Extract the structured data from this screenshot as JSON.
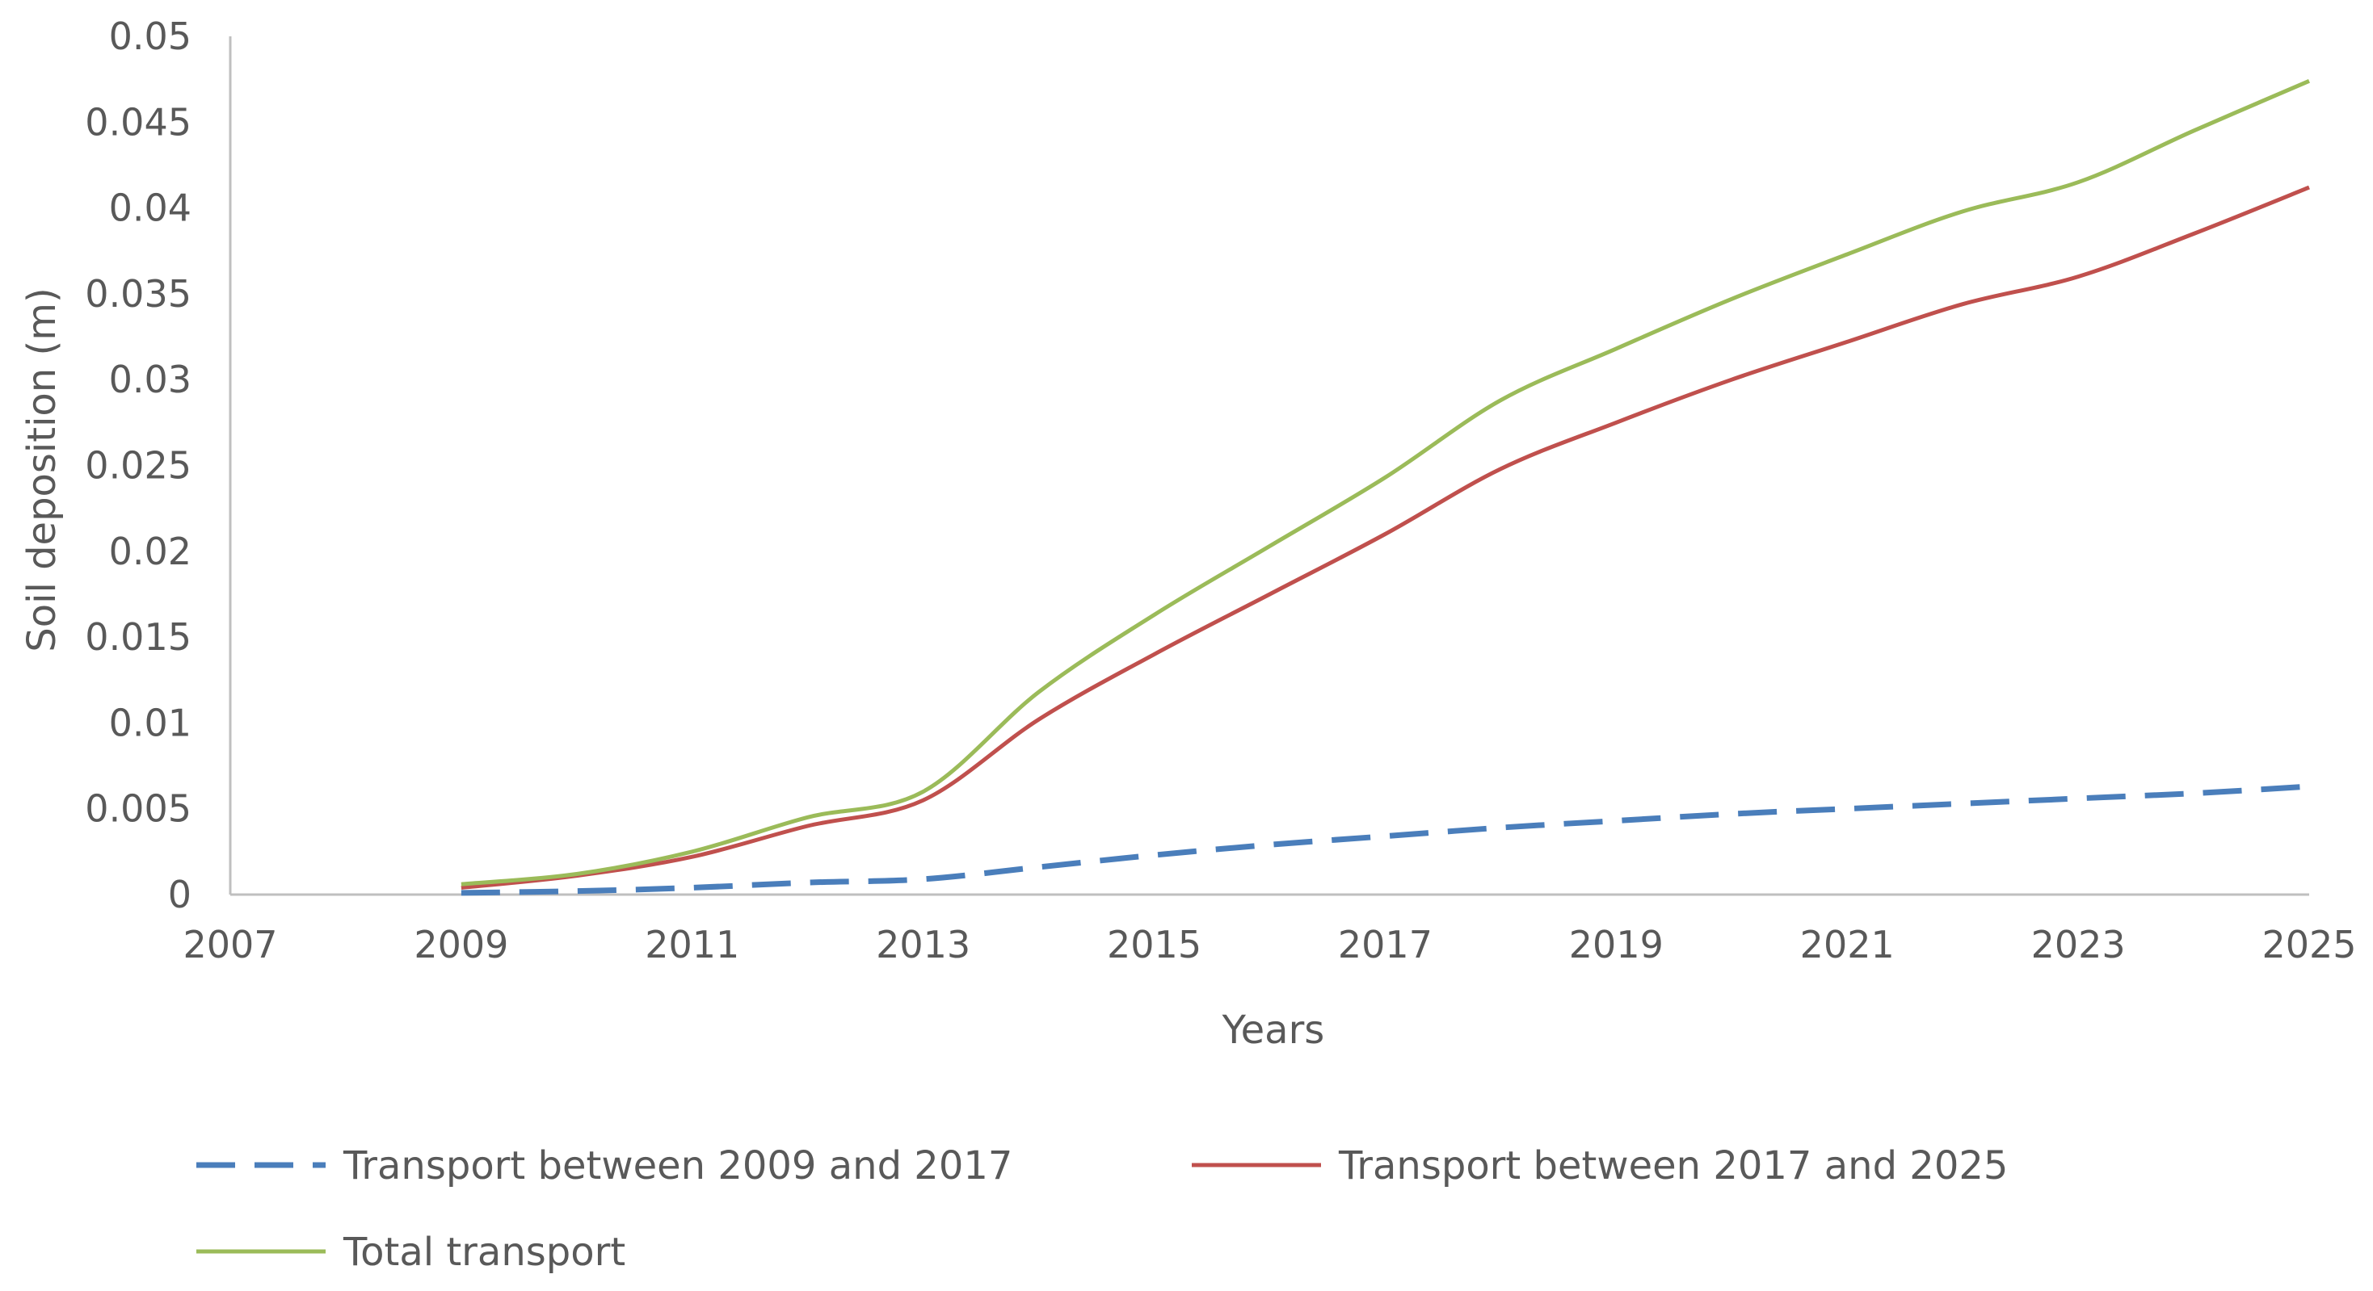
{
  "chart_data": {
    "type": "line",
    "title": "",
    "xlabel": "Years",
    "ylabel": "Soil deposition (m)",
    "xlim": [
      2007,
      2025
    ],
    "ylim": [
      0,
      0.05
    ],
    "x_ticks": [
      "2007",
      "2009",
      "2011",
      "2013",
      "2015",
      "2017",
      "2019",
      "2021",
      "2023",
      "2025"
    ],
    "y_ticks": [
      "0",
      "0.005",
      "0.01",
      "0.015",
      "0.02",
      "0.025",
      "0.03",
      "0.035",
      "0.04",
      "0.045",
      "0.05"
    ],
    "grid": false,
    "legend_position": "bottom",
    "x": [
      2009,
      2010,
      2011,
      2012,
      2013,
      2014,
      2015,
      2016,
      2017,
      2018,
      2019,
      2020,
      2021,
      2022,
      2023,
      2024,
      2025
    ],
    "series": [
      {
        "name": "Transport between 2009 and 2017",
        "color": "#4a7ebb",
        "dash": "dashed",
        "values": [
          0.0001,
          0.0002,
          0.0004,
          0.0007,
          0.0009,
          0.0016,
          0.0023,
          0.0029,
          0.0034,
          0.0039,
          0.0043,
          0.0047,
          0.005,
          0.0053,
          0.0056,
          0.0059,
          0.0063
        ]
      },
      {
        "name": "Transport between 2017 and 2025",
        "color": "#c0504d",
        "dash": "solid",
        "values": [
          0.0004,
          0.0011,
          0.0022,
          0.004,
          0.0055,
          0.0102,
          0.014,
          0.0175,
          0.021,
          0.0248,
          0.0275,
          0.03,
          0.0322,
          0.0344,
          0.036,
          0.0385,
          0.0412
        ]
      },
      {
        "name": "Total transport",
        "color": "#9bbb59",
        "dash": "solid",
        "values": [
          0.0006,
          0.0012,
          0.0025,
          0.0045,
          0.006,
          0.0118,
          0.0163,
          0.0203,
          0.0243,
          0.0288,
          0.0318,
          0.0347,
          0.0373,
          0.0398,
          0.0415,
          0.0445,
          0.0474
        ]
      }
    ]
  }
}
